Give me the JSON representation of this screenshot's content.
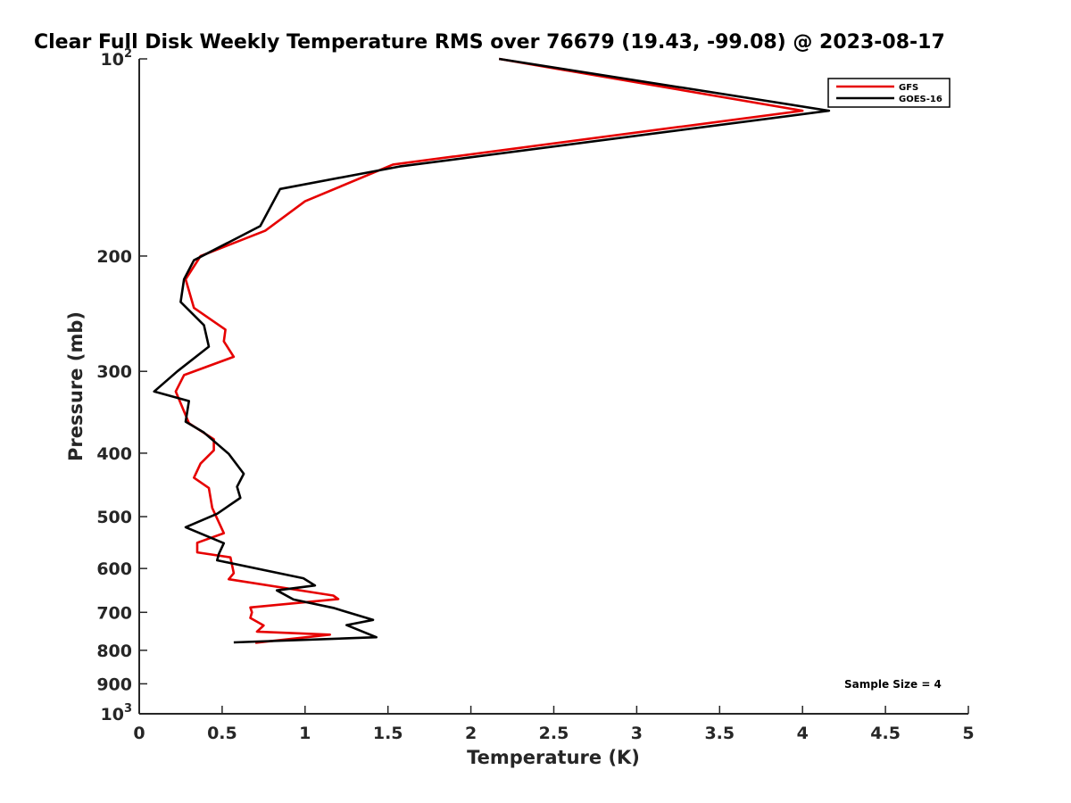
{
  "chart_data": {
    "type": "line",
    "title": "Clear Full Disk Weekly Temperature RMS over 76679 (19.43, -99.08) @ 2023-08-17",
    "xlabel": "Temperature (K)",
    "ylabel": "Pressure (mb)",
    "xlim": [
      0,
      5
    ],
    "ylim": [
      100,
      1000
    ],
    "yscale": "log",
    "y_reversed": true,
    "x_ticks": [
      "0",
      "0.5",
      "1",
      "1.5",
      "2",
      "2.5",
      "3",
      "3.5",
      "4",
      "4.5",
      "5"
    ],
    "y_ticks": [
      {
        "value": 100,
        "base": "10",
        "exp": "2"
      },
      {
        "value": 200,
        "label": "200"
      },
      {
        "value": 300,
        "label": "300"
      },
      {
        "value": 400,
        "label": "400"
      },
      {
        "value": 500,
        "label": "500"
      },
      {
        "value": 600,
        "label": "600"
      },
      {
        "value": 700,
        "label": "700"
      },
      {
        "value": 800,
        "label": "800"
      },
      {
        "value": 900,
        "label": "900"
      },
      {
        "value": 1000,
        "base": "10",
        "exp": "3"
      }
    ],
    "legend_position": "top-right",
    "annotation": "Sample Size = 4",
    "series": [
      {
        "name": "GFS",
        "color": "#e60000",
        "x": [
          2.17,
          4.0,
          1.53,
          1.0,
          0.76,
          0.37,
          0.28,
          0.33,
          0.52,
          0.51,
          0.57,
          0.27,
          0.22,
          0.3,
          0.45,
          0.45,
          0.37,
          0.33,
          0.42,
          0.44,
          0.51,
          0.35,
          0.35,
          0.55,
          0.57,
          0.54,
          1.17,
          1.2,
          0.67,
          0.68,
          0.67,
          0.75,
          0.71,
          1.15,
          0.7
        ],
        "y": [
          100,
          120,
          145,
          165,
          183,
          200,
          217,
          240,
          259,
          270,
          285,
          304,
          322,
          360,
          381,
          396,
          415,
          436,
          452,
          485,
          530,
          548,
          567,
          577,
          610,
          623,
          660,
          668,
          688,
          700,
          714,
          733,
          749,
          757,
          779
        ]
      },
      {
        "name": "GOES-16",
        "color": "#000000",
        "x": [
          2.17,
          4.16,
          1.57,
          0.85,
          0.73,
          0.33,
          0.27,
          0.25,
          0.39,
          0.42,
          0.23,
          0.09,
          0.3,
          0.28,
          0.39,
          0.54,
          0.63,
          0.59,
          0.61,
          0.47,
          0.28,
          0.51,
          0.48,
          0.47,
          0.99,
          1.06,
          0.83,
          0.93,
          1.17,
          1.41,
          1.25,
          1.43,
          0.57
        ],
        "y": [
          100,
          120,
          146,
          158,
          180,
          203,
          217,
          235,
          255,
          275,
          300,
          322,
          333,
          358,
          372,
          401,
          430,
          450,
          468,
          495,
          519,
          549,
          570,
          583,
          621,
          637,
          648,
          669,
          689,
          719,
          732,
          764,
          778
        ]
      }
    ]
  }
}
